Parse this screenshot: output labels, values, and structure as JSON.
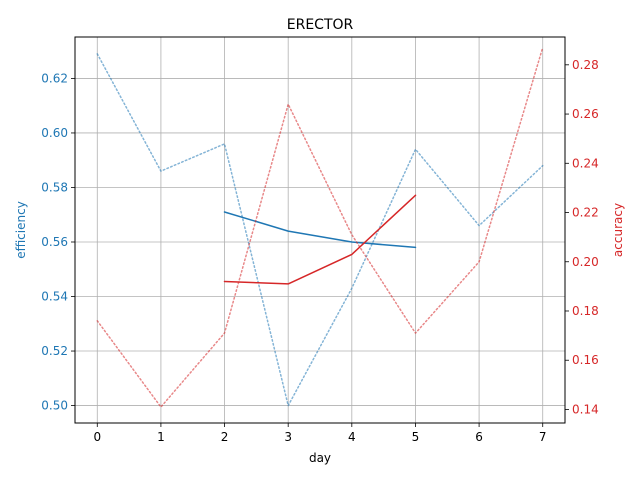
{
  "chart_data": {
    "type": "line",
    "title": "ERECTOR",
    "xlabel": "day",
    "ylabel_left": "efficiency",
    "ylabel_right": "accuracy",
    "x_ticks": [
      0,
      1,
      2,
      3,
      4,
      5,
      6,
      7
    ],
    "xlim": [
      -0.35,
      7.35
    ],
    "y_left_ticks": [
      0.5,
      0.52,
      0.54,
      0.56,
      0.58,
      0.6,
      0.62
    ],
    "y_left_tick_labels": [
      "0.50",
      "0.52",
      "0.54",
      "0.56",
      "0.58",
      "0.60",
      "0.62"
    ],
    "y_left_lim": [
      0.4936,
      0.6352
    ],
    "y_right_ticks": [
      0.14,
      0.16,
      0.18,
      0.2,
      0.22,
      0.24,
      0.26,
      0.28
    ],
    "y_right_tick_labels": [
      "0.14",
      "0.16",
      "0.18",
      "0.20",
      "0.22",
      "0.24",
      "0.26",
      "0.28"
    ],
    "y_right_lim": [
      0.1345,
      0.2913
    ],
    "grid": true,
    "colors": {
      "efficiency": "#1f77b4",
      "accuracy": "#d62728"
    },
    "series": [
      {
        "axis": "left",
        "style": "dotted",
        "x": [
          0,
          1,
          2,
          3,
          4,
          5,
          6,
          7
        ],
        "y": [
          0.629,
          0.586,
          0.596,
          0.5,
          0.543,
          0.594,
          0.566,
          0.588
        ]
      },
      {
        "axis": "left",
        "style": "solid",
        "x": [
          2,
          3,
          4,
          5
        ],
        "y": [
          0.571,
          0.564,
          0.56,
          0.558
        ]
      },
      {
        "axis": "right",
        "style": "dotted",
        "x": [
          0,
          1,
          2,
          3,
          4,
          5,
          6,
          7
        ],
        "y": [
          0.176,
          0.141,
          0.171,
          0.264,
          0.211,
          0.171,
          0.2,
          0.287
        ]
      },
      {
        "axis": "right",
        "style": "solid",
        "x": [
          2,
          3,
          4,
          5
        ],
        "y": [
          0.192,
          0.191,
          0.203,
          0.227
        ]
      }
    ]
  }
}
